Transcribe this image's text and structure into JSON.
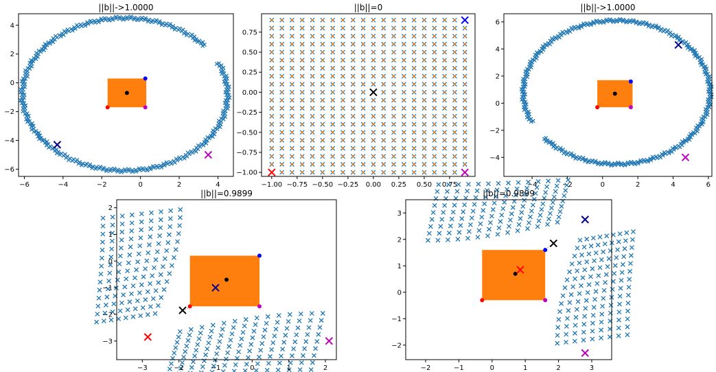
{
  "colors": {
    "blue_series": "#1f77b4",
    "orange_series": "#ff7f0e",
    "marker_red": "#ff0000",
    "marker_blue": "#0000ff",
    "marker_magenta": "#c000c0",
    "marker_black": "#000000"
  },
  "chart_data": [
    {
      "type": "scatter",
      "title": "||b||->1.0000",
      "xlim": [
        -6.3,
        4.8
      ],
      "ylim": [
        -6.5,
        4.8
      ],
      "xticks": [
        -6,
        -4,
        -2,
        0,
        2,
        4
      ],
      "yticks": [
        -6,
        -4,
        -2,
        0,
        2,
        4
      ],
      "grid": false,
      "transformed": {
        "shape": "arc",
        "center": [
          -0.8,
          -0.8
        ],
        "radius": 5.3,
        "start_deg": 40,
        "end_deg": 384
      },
      "square": {
        "x": [
          -1.7,
          0.3
        ],
        "y": [
          -1.7,
          0.3
        ]
      },
      "points": {
        "red_dot": [
          -1.7,
          -1.7
        ],
        "blue_dot": [
          0.25,
          0.3
        ],
        "magenta_dot": [
          0.25,
          -1.7
        ],
        "black_dot": [
          -0.7,
          -0.7
        ],
        "navy_x": [
          -4.3,
          -4.3
        ],
        "magenta_x": [
          3.5,
          -5.0
        ]
      }
    },
    {
      "type": "scatter",
      "title": "||b||=0",
      "xlim": [
        -1.1,
        1.0
      ],
      "ylim": [
        -1.05,
        0.98
      ],
      "xticks": [
        -1.0,
        -0.75,
        -0.5,
        -0.25,
        0.0,
        0.25,
        0.5,
        0.75
      ],
      "yticks": [
        -1.0,
        -0.75,
        -0.5,
        -0.25,
        0.0,
        0.25,
        0.5,
        0.75
      ],
      "grid": false,
      "grid_points": {
        "x": [
          -1.0,
          0.9
        ],
        "y": [
          -1.0,
          0.9
        ],
        "n": 20
      },
      "points": {
        "red_x": [
          -1.0,
          -1.0
        ],
        "blue_x": [
          0.9,
          0.9
        ],
        "magenta_x": [
          0.9,
          -1.0
        ],
        "black_x": [
          0.0,
          0.0
        ]
      }
    },
    {
      "type": "scatter",
      "title": "||b||->1.0000",
      "xlim": [
        -5.6,
        6.2
      ],
      "ylim": [
        -5.4,
        6.6
      ],
      "xticks": [
        -4,
        -2,
        0,
        2,
        4,
        6
      ],
      "yticks": [
        -4,
        -2,
        0,
        2,
        4,
        6
      ],
      "grid": false,
      "transformed": {
        "shape": "arc",
        "center": [
          0.8,
          0.8
        ],
        "radius": 5.3,
        "start_deg": 220,
        "end_deg": 564
      },
      "square": {
        "x": [
          -0.3,
          1.7
        ],
        "y": [
          -0.3,
          1.7
        ]
      },
      "points": {
        "red_dot": [
          -0.3,
          -0.3
        ],
        "blue_dot": [
          1.6,
          1.6
        ],
        "magenta_dot": [
          1.6,
          -0.3
        ],
        "black_dot": [
          0.7,
          0.7
        ],
        "navy_x": [
          4.3,
          4.3
        ],
        "magenta_x": [
          4.7,
          -4.0
        ]
      }
    },
    {
      "type": "scatter",
      "title": "||b||=0.9899",
      "xlim": [
        -3.7,
        2.3
      ],
      "ylim": [
        -3.7,
        2.3
      ],
      "xticks": [
        -3,
        -2,
        -1,
        0,
        1,
        2
      ],
      "yticks": [
        -3,
        -2,
        -1,
        0,
        1,
        2
      ],
      "grid": false,
      "transformed": {
        "shape": "L-fan",
        "corner": [
          -1.9,
          -1.9
        ]
      },
      "square": {
        "x": [
          -1.7,
          0.2
        ],
        "y": [
          -1.7,
          0.2
        ]
      },
      "points": {
        "red_dot": [
          -1.7,
          -1.7
        ],
        "blue_dot": [
          0.2,
          0.2
        ],
        "magenta_dot": [
          0.2,
          -1.7
        ],
        "black_dot": [
          -0.7,
          -0.7
        ],
        "black_x": [
          -1.9,
          -1.85
        ],
        "navy_x": [
          -1.0,
          -1.0
        ],
        "red_x": [
          -2.85,
          -2.85
        ],
        "magenta_x": [
          2.1,
          -3.0
        ]
      }
    },
    {
      "type": "scatter",
      "title": "||b||=0.9899",
      "xlim": [
        -2.6,
        3.6
      ],
      "ylim": [
        -2.55,
        3.5
      ],
      "xticks": [
        -2,
        -1,
        0,
        1,
        2,
        3
      ],
      "yticks": [
        -2,
        -1,
        0,
        1,
        2,
        3
      ],
      "grid": false,
      "transformed": {
        "shape": "L-fan",
        "corner": [
          1.9,
          1.9
        ]
      },
      "square": {
        "x": [
          -0.3,
          1.6
        ],
        "y": [
          -0.3,
          1.6
        ]
      },
      "points": {
        "red_dot": [
          -0.3,
          -0.3
        ],
        "blue_dot": [
          1.6,
          1.6
        ],
        "magenta_dot": [
          1.6,
          -0.3
        ],
        "black_dot": [
          0.7,
          0.7
        ],
        "black_x": [
          1.85,
          1.85
        ],
        "red_x": [
          0.85,
          0.85
        ],
        "navy_x": [
          2.8,
          2.75
        ],
        "magenta_x": [
          2.8,
          -2.3
        ]
      }
    }
  ]
}
